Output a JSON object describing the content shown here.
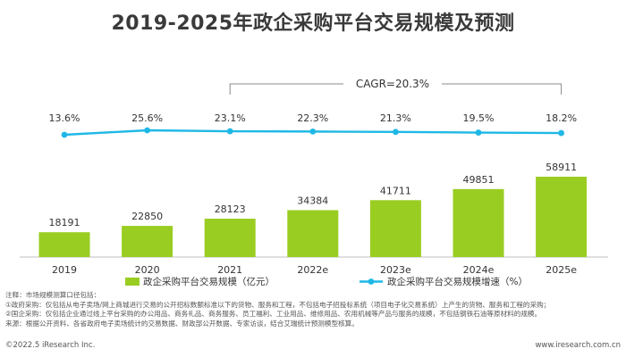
{
  "chart_data": {
    "type": "bar",
    "title": "2019-2025年政企采购平台交易规模及预测",
    "categories": [
      "2019",
      "2020",
      "2021",
      "2022e",
      "2023e",
      "2024e",
      "2025e"
    ],
    "series": [
      {
        "name": "政企采购平台交易规模（亿元）",
        "type": "bar",
        "values": [
          18191,
          22850,
          28123,
          34384,
          41711,
          49851,
          58911
        ],
        "color": "#9acd22"
      },
      {
        "name": "政企采购平台交易规模增速（%）",
        "type": "line",
        "values": [
          13.6,
          25.6,
          23.1,
          22.3,
          21.3,
          19.5,
          18.2
        ],
        "labels": [
          "13.6%",
          "25.6%",
          "23.1%",
          "22.3%",
          "21.3%",
          "19.5%",
          "18.2%"
        ],
        "color": "#1fb8e6"
      }
    ],
    "annotation": "CAGR=20.3%",
    "grid": false,
    "legend_position": "bottom"
  },
  "notes": [
    "注释：市场规模测算口径包括：",
    "①政府采购：仅包括从电子卖场/网上商城进行交易的公开招标数额标准以下的货物、服务和工程，不包括电子招投标系统（项目电子化交易系统）上产生的货物、服务和工程的采购；",
    "②国企采购：仅包括企业通过线上平台采购的办公用品、商务礼品、商务服务、员工福利、工业用品、维修用品、农用机械等产品与服务的规模，不包括钢铁石油等原材料的规模。",
    "来源：根据公开资料、各省政府电子卖场统计的交易数据、财政部公开数据、专家访谈，结合艾瑞统计预测模型核算。"
  ],
  "footer": {
    "copyright": "©2022.5 iResearch Inc.",
    "website": "www.iresearch.com.cn"
  }
}
